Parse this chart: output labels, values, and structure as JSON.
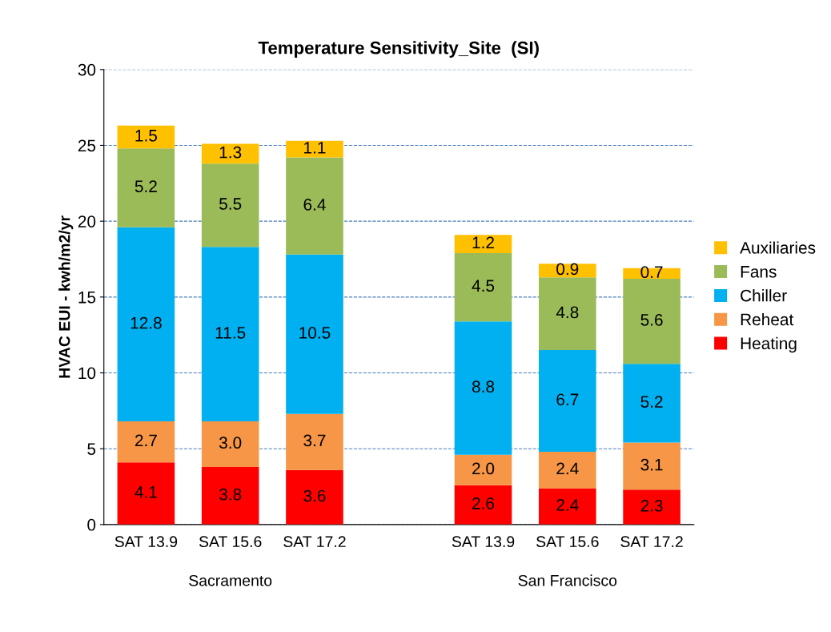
{
  "chart_data": {
    "type": "bar",
    "title": "Temperature Sensitivity_Site  (SI)",
    "ylabel": "HVAC EUI - kwh/m2/yr",
    "categories": [
      "SAT 13.9",
      "SAT 15.6",
      "SAT 17.2",
      null,
      "SAT 13.9",
      "SAT 15.6",
      "SAT 17.2"
    ],
    "stacked": true,
    "grid": "y",
    "legend": "right",
    "ylim": [
      0,
      30
    ],
    "yticks": [
      0,
      5,
      10,
      15,
      20,
      25,
      30
    ],
    "series": [
      {
        "name": "Heating",
        "color": "#ff0000",
        "values": [
          4.1,
          3.8,
          3.6,
          null,
          2.6,
          2.4,
          2.3
        ],
        "value_labels": [
          "4.1",
          "3.8",
          "3.6",
          null,
          "2.6",
          "2.4",
          "2.3"
        ]
      },
      {
        "name": "Reheat",
        "color": "#f79646",
        "values": [
          2.7,
          3.0,
          3.7,
          null,
          2.0,
          2.4,
          3.1
        ],
        "value_labels": [
          "2.7",
          "3.0",
          "3.7",
          null,
          "2.0",
          "2.4",
          "3.1"
        ]
      },
      {
        "name": "Chiller",
        "color": "#00b0f0",
        "values": [
          12.8,
          11.5,
          10.5,
          null,
          8.8,
          6.7,
          5.2
        ],
        "value_labels": [
          "12.8",
          "11.5",
          "10.5",
          null,
          "8.8",
          "6.7",
          "5.2"
        ]
      },
      {
        "name": "Fans",
        "color": "#9bbb59",
        "values": [
          5.2,
          5.5,
          6.4,
          null,
          4.5,
          4.8,
          5.6
        ],
        "value_labels": [
          "5.2",
          "5.5",
          "6.4",
          null,
          "4.5",
          "4.8",
          "5.6"
        ]
      },
      {
        "name": "Auxiliaries",
        "color": "#ffc000",
        "values": [
          1.5,
          1.3,
          1.1,
          null,
          1.2,
          0.9,
          0.7
        ],
        "value_labels": [
          "1.5",
          "1.3",
          "1.1",
          null,
          "1.2",
          "0.9",
          "0.7"
        ]
      }
    ],
    "annotations": [
      "Sacramento",
      "San Francisco"
    ]
  }
}
